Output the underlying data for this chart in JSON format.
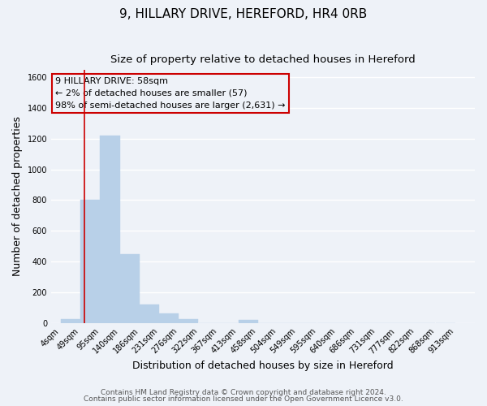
{
  "title": "9, HILLARY DRIVE, HEREFORD, HR4 0RB",
  "subtitle": "Size of property relative to detached houses in Hereford",
  "xlabel": "Distribution of detached houses by size in Hereford",
  "ylabel": "Number of detached properties",
  "bar_left_edges": [
    4,
    49,
    95,
    140,
    186,
    231,
    276,
    322,
    367,
    413,
    458,
    504,
    549,
    595,
    640,
    686,
    731,
    777,
    822,
    868
  ],
  "bar_heights": [
    25,
    800,
    1220,
    450,
    120,
    60,
    25,
    0,
    0,
    18,
    0,
    0,
    0,
    0,
    0,
    0,
    0,
    0,
    0,
    0
  ],
  "bin_width": 45,
  "bar_color": "#b8d0e8",
  "ylim": [
    0,
    1650
  ],
  "yticks": [
    0,
    200,
    400,
    600,
    800,
    1000,
    1200,
    1400,
    1600
  ],
  "x_tick_labels": [
    "4sqm",
    "49sqm",
    "95sqm",
    "140sqm",
    "186sqm",
    "231sqm",
    "276sqm",
    "322sqm",
    "367sqm",
    "413sqm",
    "458sqm",
    "504sqm",
    "549sqm",
    "595sqm",
    "640sqm",
    "686sqm",
    "731sqm",
    "777sqm",
    "822sqm",
    "868sqm",
    "913sqm"
  ],
  "x_tick_positions": [
    4,
    49,
    95,
    140,
    186,
    231,
    276,
    322,
    367,
    413,
    458,
    504,
    549,
    595,
    640,
    686,
    731,
    777,
    822,
    868,
    913
  ],
  "property_size": 58,
  "vline_color": "#cc0000",
  "annotation_box_edge_color": "#cc0000",
  "annotation_lines": [
    "9 HILLARY DRIVE: 58sqm",
    "← 2% of detached houses are smaller (57)",
    "98% of semi-detached houses are larger (2,631) →"
  ],
  "footer_line1": "Contains HM Land Registry data © Crown copyright and database right 2024.",
  "footer_line2": "Contains public sector information licensed under the Open Government Licence v3.0.",
  "background_color": "#eef2f8",
  "grid_color": "#ffffff",
  "title_fontsize": 11,
  "subtitle_fontsize": 9.5,
  "axis_label_fontsize": 9,
  "tick_fontsize": 7,
  "annotation_fontsize": 8,
  "footer_fontsize": 6.5
}
